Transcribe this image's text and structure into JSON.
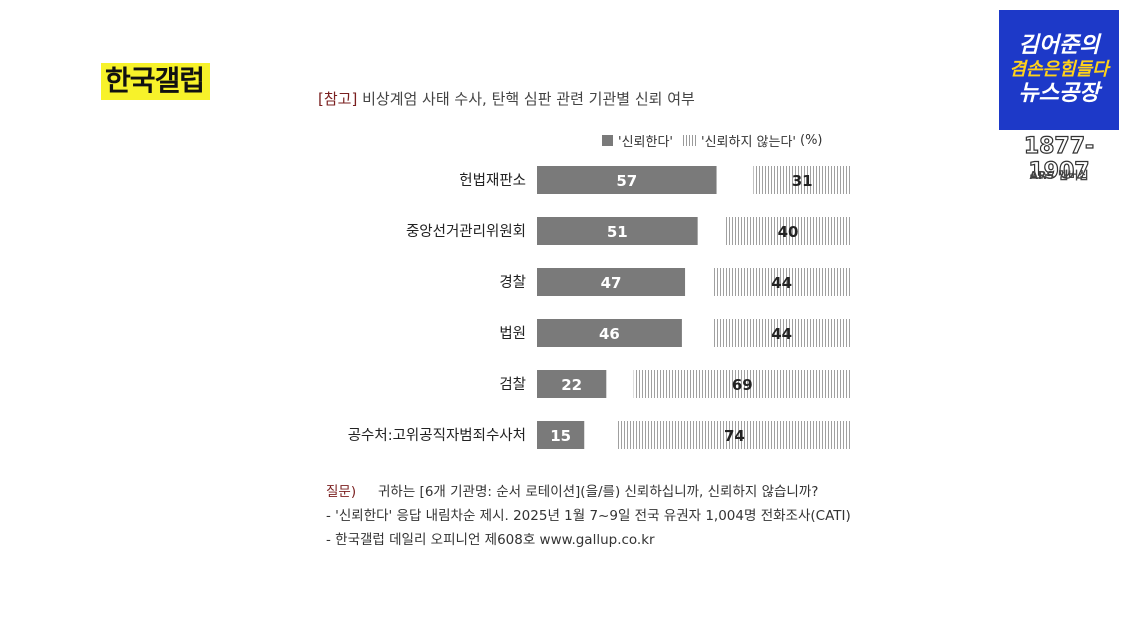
{
  "brand": "한국갤럽",
  "chart_data": {
    "type": "bar",
    "title_ref": "[참고]",
    "title": "비상계엄 사태 수사, 탄핵 심판 관련 기관별 신뢰 여부",
    "legend": {
      "trust": "'신뢰한다'",
      "distrust": "'신뢰하지 않는다'",
      "unit": "(%)",
      "placement": "top-right"
    },
    "categories": [
      "헌법재판소",
      "중앙선거관리위원회",
      "경찰",
      "법원",
      "검찰",
      "공수처:고위공직자범죄수사처"
    ],
    "series": [
      {
        "name": "'신뢰한다'",
        "values": [
          57,
          51,
          47,
          46,
          22,
          15
        ],
        "color": "#7a7a7a"
      },
      {
        "name": "'신뢰하지 않는다'",
        "values": [
          31,
          40,
          44,
          44,
          69,
          74
        ],
        "color": "#9a9a9a"
      }
    ]
  },
  "notes": {
    "question_label": "질문)",
    "question": "귀하는 [6개 기관명: 순서 로테이션](을/를) 신뢰하십니까, 신뢰하지 않습니까?",
    "line2": "- '신뢰한다' 응답 내림차순 제시. 2025년 1월 7~9일 전국 유권자 1,004명 전화조사(CATI)",
    "line3": "- 한국갤럽 데일리 오피니언 제608호 www.gallup.co.kr"
  },
  "logo": {
    "line1": "김어준의",
    "line2": "겸손은힘들다",
    "line3": "뉴스공장",
    "phone": "1877-1907",
    "ars": "ARS 멤버십"
  }
}
